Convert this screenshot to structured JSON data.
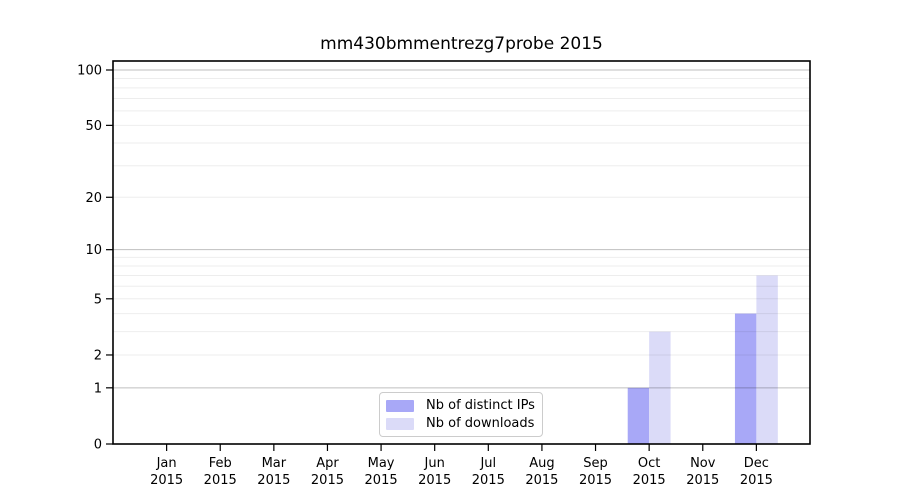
{
  "chart_data": {
    "type": "bar",
    "title": "mm430bmmentrezg7probe 2015",
    "categories": [
      "Jan",
      "Feb",
      "Mar",
      "Apr",
      "May",
      "Jun",
      "Jul",
      "Aug",
      "Sep",
      "Oct",
      "Nov",
      "Dec"
    ],
    "x_sub_label": "2015",
    "series": [
      {
        "name": "Nb of distinct IPs",
        "color": "#a8a8f7",
        "values": [
          0,
          0,
          0,
          0,
          0,
          0,
          0,
          0,
          0,
          1,
          0,
          4
        ]
      },
      {
        "name": "Nb of downloads",
        "color": "#dbdbf8",
        "values": [
          0,
          0,
          0,
          0,
          0,
          0,
          0,
          0,
          0,
          3,
          0,
          7
        ]
      }
    ],
    "y_axis": {
      "scale": "log10(1+v)",
      "tick_values": [
        0,
        1,
        2,
        5,
        10,
        20,
        50,
        100
      ],
      "tick_labels": [
        "0",
        "1",
        "2",
        "5",
        "10",
        "20",
        "50",
        "100"
      ],
      "major_gridlines": [
        1,
        10,
        100
      ],
      "minor_gridlines": [
        2,
        3,
        4,
        5,
        6,
        7,
        8,
        9,
        20,
        30,
        40,
        50,
        60,
        70,
        80,
        90
      ],
      "ylim": [
        0,
        112
      ]
    },
    "legend": {
      "position": "bottom-center",
      "entries": [
        "Nb of distinct IPs",
        "Nb of downloads"
      ]
    },
    "colors": {
      "axis": "#000000",
      "major_grid": "rgba(0,0,0,0.25)",
      "minor_grid": "rgba(0,0,0,0.07)",
      "background": "#ffffff"
    },
    "grid": true
  }
}
